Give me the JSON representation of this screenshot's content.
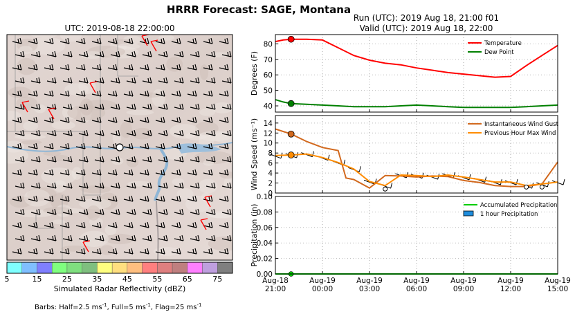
{
  "figure": {
    "title": "HRRR Forecast: SAGE, Montana",
    "run_line": "Run (UTC): 2019 Aug 18, 21:00 f01",
    "valid_line": "Valid (UTC): 2019 Aug 18, 22:00"
  },
  "map": {
    "title": "UTC: 2019-08-18 22:00:00",
    "colorbar_label": "Simulated Radar Reflectivity (dBZ)",
    "colorbar_ticks": [
      "5",
      "15",
      "25",
      "35",
      "45",
      "55",
      "65",
      "75"
    ],
    "colorbar_colors": [
      "#7fffff",
      "#7fbfff",
      "#7f7fff",
      "#7fff7f",
      "#7fdf7f",
      "#7fbf7f",
      "#ffff7f",
      "#ffdf7f",
      "#ffbf7f",
      "#ff7f7f",
      "#df7f7f",
      "#bf7f7f",
      "#ff7fff",
      "#bf9fdf",
      "#7f7f7f"
    ],
    "barb_note_prefix": "Barbs: Half=2.5 ms",
    "barb_note_mid": ", Full=5 ms",
    "barb_note_mid2": ", Flag=25 ms"
  },
  "chart_data": [
    {
      "type": "line",
      "ylabel": "Degrees (F)",
      "ylim": [
        36,
        86
      ],
      "yticks": [
        40,
        50,
        60,
        70,
        80
      ],
      "series": [
        {
          "name": "Temperature",
          "color": "#ff0000",
          "x": [
            0,
            0.5,
            1,
            2,
            3,
            4,
            5,
            6,
            7,
            8,
            9,
            10,
            11,
            12,
            13,
            14,
            15,
            16,
            17,
            18
          ],
          "y": [
            81.5,
            82.5,
            83,
            83,
            82.5,
            77.5,
            72.5,
            69.5,
            67.5,
            66.5,
            64.5,
            63,
            61.5,
            60.5,
            59.5,
            58.5,
            59,
            66,
            72.5,
            79
          ]
        },
        {
          "name": "Dew Point",
          "color": "#008000",
          "x": [
            0,
            0.5,
            1,
            2,
            3,
            4,
            5,
            6,
            7,
            8,
            9,
            10,
            11,
            12,
            13,
            14,
            15,
            16,
            17,
            18
          ],
          "y": [
            44,
            42.5,
            41.5,
            41,
            40.5,
            40,
            39.5,
            39.5,
            39.5,
            40,
            40.5,
            40,
            39.5,
            39,
            39,
            39,
            39,
            39.5,
            40,
            40.5
          ]
        }
      ],
      "marker_x": 1,
      "marker_values": [
        83,
        41.5
      ]
    },
    {
      "type": "line",
      "ylabel": "Wind Speed (ms⁻¹)",
      "ylim": [
        0,
        15.5
      ],
      "yticks": [
        0,
        2,
        4,
        6,
        8,
        10,
        12,
        14
      ],
      "series": [
        {
          "name": "Instantaneous Wind Gust",
          "color": "#d2691e",
          "x": [
            0,
            1,
            2,
            3,
            4,
            4.5,
            5,
            6,
            7,
            8,
            9,
            10,
            11,
            12,
            13,
            14,
            15,
            16,
            17,
            18
          ],
          "y": [
            12.8,
            11.8,
            10.3,
            9.1,
            8.5,
            3,
            2.7,
            1,
            3.5,
            3.4,
            3.2,
            3.4,
            3.3,
            2.5,
            2.1,
            1.5,
            1.3,
            1.3,
            1.8,
            6.2
          ]
        },
        {
          "name": "Previous Hour Max Wind",
          "color": "#ff8c00",
          "x": [
            0,
            1,
            2,
            3,
            4,
            5,
            6,
            7,
            8,
            9,
            10,
            11,
            12,
            13,
            14,
            15,
            16,
            17,
            18
          ],
          "y": [
            7.5,
            7.6,
            7.8,
            7.1,
            6.1,
            4.8,
            2.3,
            1.5,
            3.6,
            3.5,
            3.3,
            3.6,
            3.2,
            2.7,
            2.2,
            2.2,
            1.5,
            1.8,
            2.2
          ]
        }
      ],
      "markers": [
        {
          "x": 1,
          "y": 11.8,
          "color": "#d2691e"
        },
        {
          "x": 1,
          "y": 7.6,
          "color": "#ff8c00"
        }
      ],
      "hollow_markers": [
        {
          "x": 7,
          "y": 0.8
        },
        {
          "x": 16,
          "y": 1.2
        },
        {
          "x": 17,
          "y": 1.2
        }
      ]
    },
    {
      "type": "area",
      "ylabel": "Precipitation (in)",
      "ylim": [
        0,
        0.1
      ],
      "yticks": [
        "0.00",
        "0.02",
        "0.04",
        "0.06",
        "0.08",
        "0.10"
      ],
      "series": [
        {
          "name": "Accumulated Precipitation",
          "color": "#00cc00",
          "x": [
            0,
            18
          ],
          "y": [
            0,
            0
          ]
        },
        {
          "name": "1 hour Precipitation",
          "color": "#1e8cdc",
          "x": [],
          "y": []
        }
      ],
      "marker_x": 1
    }
  ],
  "x_axis": {
    "ticks": [
      {
        "x": 0,
        "l1": "Aug-18",
        "l2": "21:00"
      },
      {
        "x": 3,
        "l1": "Aug-19",
        "l2": "00:00"
      },
      {
        "x": 6,
        "l1": "Aug-19",
        "l2": "03:00"
      },
      {
        "x": 9,
        "l1": "Aug-19",
        "l2": "06:00"
      },
      {
        "x": 12,
        "l1": "Aug-19",
        "l2": "09:00"
      },
      {
        "x": 15,
        "l1": "Aug-19",
        "l2": "12:00"
      },
      {
        "x": 18,
        "l1": "Aug-19",
        "l2": "15:00"
      }
    ],
    "xlim": [
      0,
      18
    ]
  }
}
